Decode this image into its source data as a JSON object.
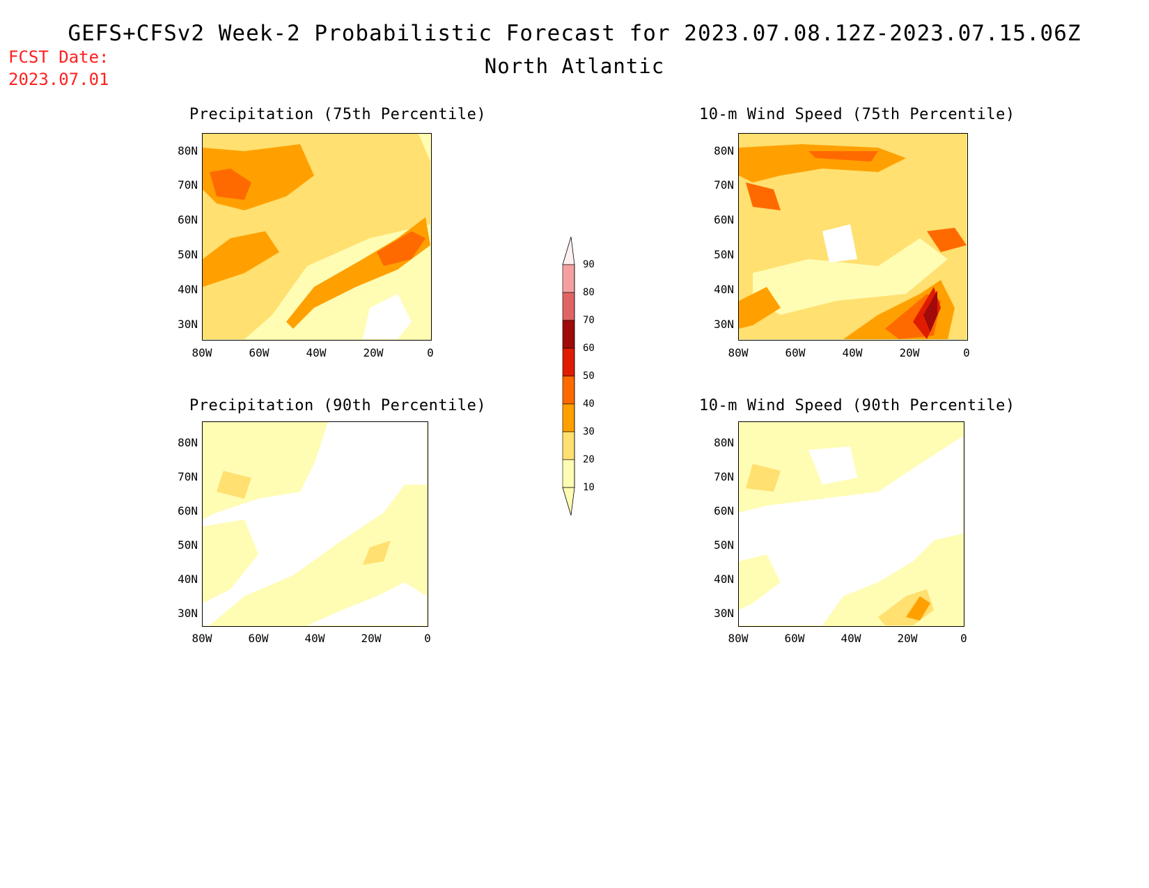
{
  "header": {
    "title": "GEFS+CFSv2 Week-2 Probabilistic Forecast for 2023.07.08.12Z-2023.07.15.06Z",
    "subtitle": "North Atlantic",
    "fcst_label": "FCST Date:",
    "fcst_date": "2023.07.01"
  },
  "panels": [
    {
      "title": "Precipitation (75th Percentile)"
    },
    {
      "title": "10-m Wind Speed (75th Percentile)"
    },
    {
      "title": "Precipitation (90th Percentile)"
    },
    {
      "title": "10-m Wind Speed (90th Percentile)"
    }
  ],
  "axes": {
    "lat_labels": [
      "80N",
      "70N",
      "60N",
      "50N",
      "40N",
      "30N"
    ],
    "lon_labels": [
      "80W",
      "60W",
      "40W",
      "20W",
      "0"
    ]
  },
  "legend": {
    "levels": [
      "90",
      "80",
      "70",
      "60",
      "50",
      "40",
      "30",
      "20",
      "10"
    ],
    "colors": [
      "#fff0f0",
      "#f5a0a0",
      "#e06464",
      "#a00a0a",
      "#e01c00",
      "#ff6a00",
      "#ffa000",
      "#ffe070",
      "#fffcb4"
    ]
  },
  "map_colors": {
    "light_yellow": "#fffcb4",
    "yellow": "#ffe070",
    "orange": "#ffa000",
    "dark_orange": "#ff6a00",
    "red": "#e01c00",
    "dark_red": "#a00a0a",
    "white": "#ffffff"
  }
}
